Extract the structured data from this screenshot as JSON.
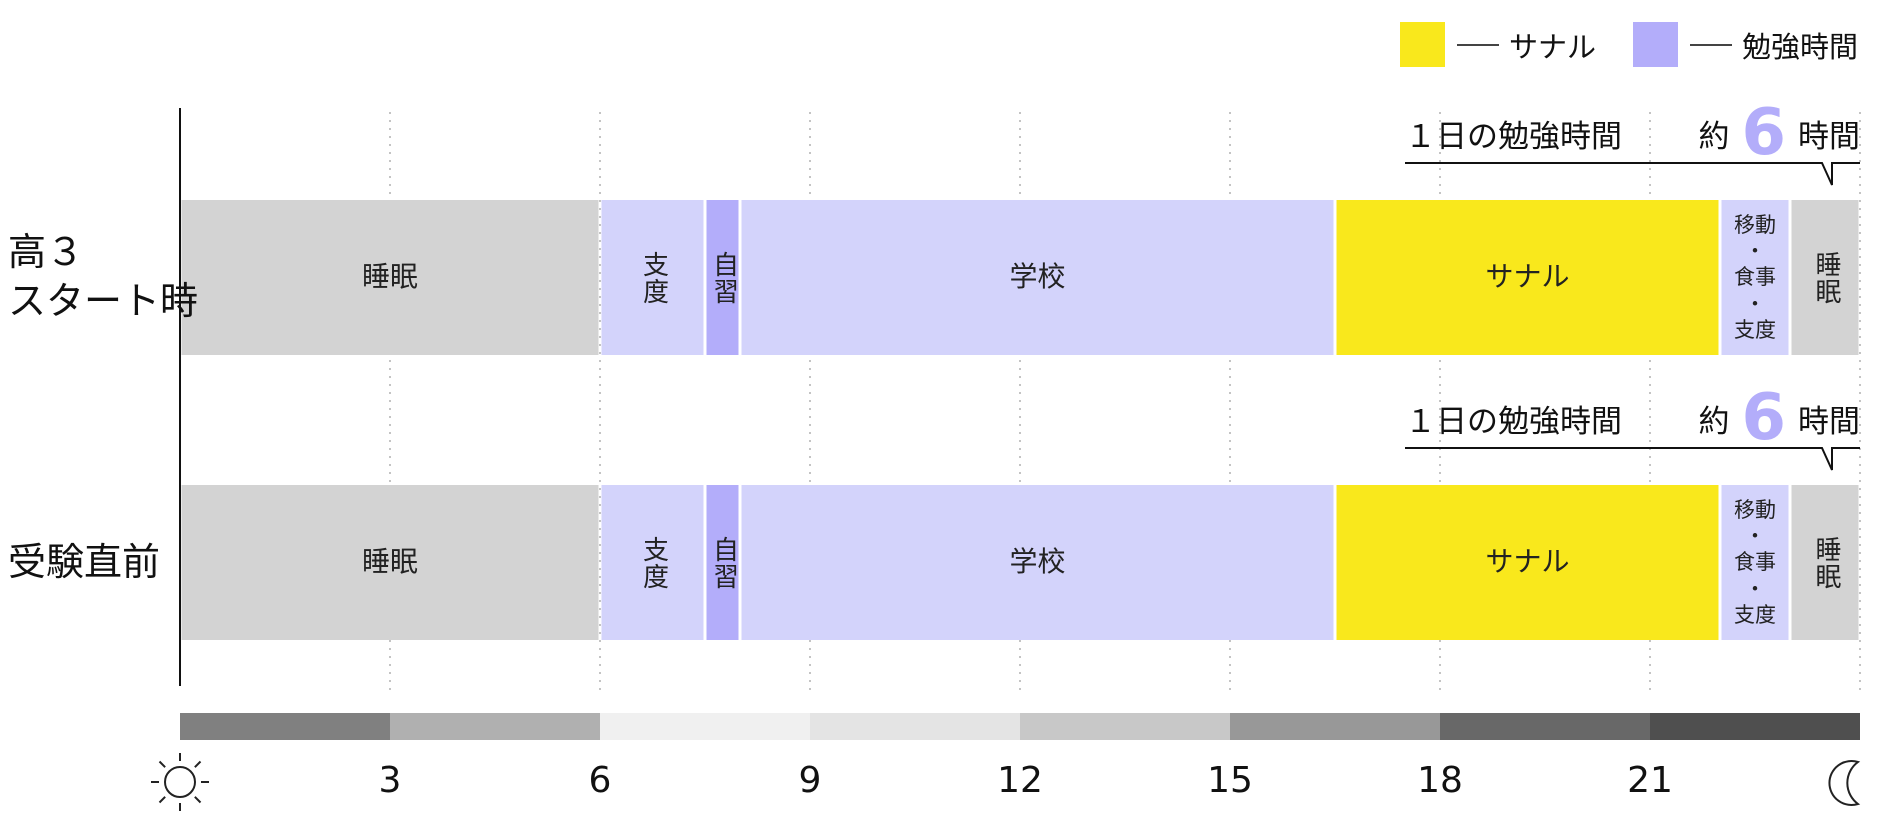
{
  "chart_data": {
    "type": "timeline",
    "xlim": [
      0,
      24
    ],
    "x_ticks": [
      "3",
      "6",
      "9",
      "12",
      "15",
      "18",
      "21"
    ],
    "x_tick_values": [
      3,
      6,
      9,
      12,
      15,
      18,
      21
    ],
    "legend": [
      {
        "label": "サナル",
        "color": "#f9e81c"
      },
      {
        "label": "勉強時間",
        "color": "#b3adfa"
      }
    ],
    "rows": [
      {
        "label": "高３\nスタート時",
        "callout_prefix": "１日の勉強時間",
        "callout_pre": "約",
        "callout_value": "6",
        "callout_unit": "時間",
        "segments": [
          {
            "label": "睡眠",
            "start": 0,
            "end": 6,
            "color": "#d3d3d3"
          },
          {
            "label": "支度",
            "start": 6,
            "end": 7.5,
            "color": "#d3d3fb",
            "vertical": true
          },
          {
            "label": "自習",
            "start": 7.5,
            "end": 8,
            "color": "#b3adfa",
            "vertical": true
          },
          {
            "label": "学校",
            "start": 8,
            "end": 16.5,
            "color": "#d3d3fb"
          },
          {
            "label": "サナル",
            "start": 16.5,
            "end": 22,
            "color": "#f9e81c"
          },
          {
            "label": "移動\n・\n食事\n・\n支度",
            "start": 22,
            "end": 23,
            "color": "#d3d3fb",
            "small": true
          },
          {
            "label": "睡眠",
            "start": 23,
            "end": 24,
            "color": "#d3d3d3",
            "vertical": true
          }
        ]
      },
      {
        "label": "受験直前",
        "callout_prefix": "１日の勉強時間",
        "callout_pre": "約",
        "callout_value": "6",
        "callout_unit": "時間",
        "segments": [
          {
            "label": "睡眠",
            "start": 0,
            "end": 6,
            "color": "#d3d3d3"
          },
          {
            "label": "支度",
            "start": 6,
            "end": 7.5,
            "color": "#d3d3fb",
            "vertical": true
          },
          {
            "label": "自習",
            "start": 7.5,
            "end": 8,
            "color": "#b3adfa",
            "vertical": true
          },
          {
            "label": "学校",
            "start": 8,
            "end": 16.5,
            "color": "#d3d3fb"
          },
          {
            "label": "サナル",
            "start": 16.5,
            "end": 22,
            "color": "#f9e81c"
          },
          {
            "label": "移動\n・\n食事\n・\n支度",
            "start": 22,
            "end": 23,
            "color": "#d3d3fb",
            "small": true
          },
          {
            "label": "睡眠",
            "start": 23,
            "end": 24,
            "color": "#d3d3d3",
            "vertical": true
          }
        ]
      }
    ],
    "daylight_band": [
      {
        "start": 0,
        "end": 3,
        "color": "#808080"
      },
      {
        "start": 3,
        "end": 6,
        "color": "#b0b0b0"
      },
      {
        "start": 6,
        "end": 9,
        "color": "#f0f0f0"
      },
      {
        "start": 9,
        "end": 12,
        "color": "#e4e4e4"
      },
      {
        "start": 12,
        "end": 15,
        "color": "#c8c8c8"
      },
      {
        "start": 15,
        "end": 18,
        "color": "#989898"
      },
      {
        "start": 18,
        "end": 21,
        "color": "#686868"
      },
      {
        "start": 21,
        "end": 24,
        "color": "#4f4f4f"
      }
    ],
    "icons": {
      "start": "sun-icon",
      "end": "moon-icon"
    }
  }
}
